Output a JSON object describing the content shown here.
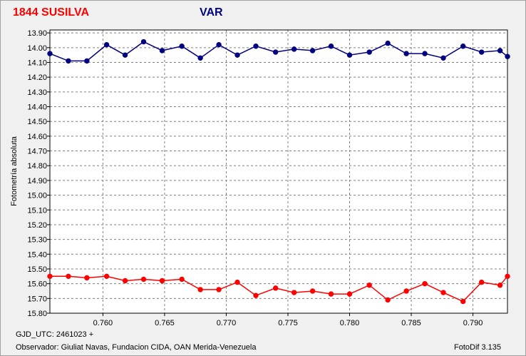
{
  "header": {
    "object_title": "1844 SUSILVA",
    "series_title": "VAR"
  },
  "footer": {
    "gjd": "GJD_UTC: 2461023 +",
    "observer": "Observador: Giuliat Navas, Fundacion CIDA, OAN  Merida-Venezuela",
    "version": "FotoDif 3.135"
  },
  "colors": {
    "var": "#000080",
    "comp": "#ff0000",
    "grid": "#808080",
    "plot_bg": "#ffffff"
  },
  "chart_data": {
    "type": "line",
    "ylabel": "Fotometría absoluta",
    "xlabel": "",
    "xlim": [
      0.7557,
      0.7928
    ],
    "ylim": [
      15.8,
      13.88
    ],
    "y_inverted": true,
    "grid": true,
    "x_ticks": [
      "0.760",
      "0.765",
      "0.770",
      "0.775",
      "0.780",
      "0.785",
      "0.790"
    ],
    "x_tick_values": [
      0.76,
      0.765,
      0.77,
      0.775,
      0.78,
      0.785,
      0.79
    ],
    "y_ticks": [
      "13.90",
      "14.00",
      "14.10",
      "14.20",
      "14.30",
      "14.40",
      "14.50",
      "14.60",
      "14.70",
      "14.80",
      "14.90",
      "15.00",
      "15.10",
      "15.20",
      "15.30",
      "15.40",
      "15.50",
      "15.60",
      "15.70",
      "15.80"
    ],
    "y_tick_values": [
      13.9,
      14.0,
      14.1,
      14.2,
      14.3,
      14.4,
      14.5,
      14.6,
      14.7,
      14.8,
      14.9,
      15.0,
      15.1,
      15.2,
      15.3,
      15.4,
      15.5,
      15.6,
      15.7,
      15.8
    ],
    "x": [
      0.7557,
      0.7572,
      0.7587,
      0.7603,
      0.7618,
      0.7633,
      0.7648,
      0.7664,
      0.7679,
      0.7694,
      0.7709,
      0.7724,
      0.774,
      0.7755,
      0.777,
      0.7785,
      0.78,
      0.7816,
      0.7831,
      0.7846,
      0.7861,
      0.7876,
      0.7892,
      0.7907,
      0.7922,
      0.7928
    ],
    "series": [
      {
        "key": "var",
        "values": [
          14.04,
          14.09,
          14.09,
          13.98,
          14.05,
          13.96,
          14.02,
          13.99,
          14.07,
          13.98,
          14.05,
          13.99,
          14.03,
          14.01,
          14.02,
          13.99,
          14.05,
          14.03,
          13.97,
          14.04,
          14.04,
          14.07,
          13.99,
          14.03,
          14.02,
          14.06
        ]
      },
      {
        "key": "comp",
        "values": [
          15.55,
          15.55,
          15.56,
          15.55,
          15.58,
          15.57,
          15.58,
          15.57,
          15.64,
          15.64,
          15.59,
          15.68,
          15.63,
          15.66,
          15.65,
          15.67,
          15.67,
          15.61,
          15.71,
          15.65,
          15.6,
          15.66,
          15.72,
          15.59,
          15.61,
          15.55
        ]
      }
    ]
  }
}
